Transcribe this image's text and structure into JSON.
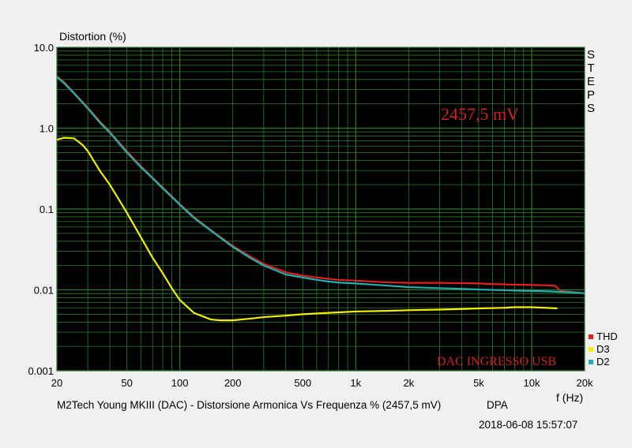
{
  "chart_data": {
    "type": "line",
    "ylabel": "Distortion (%)",
    "xlabel": "f (Hz)",
    "x_scale": "log",
    "y_scale": "log",
    "xlim": [
      20,
      20000
    ],
    "ylim": [
      0.001,
      10
    ],
    "x_ticks": [
      {
        "value": 20,
        "label": "20"
      },
      {
        "value": 50,
        "label": "50"
      },
      {
        "value": 100,
        "label": "100"
      },
      {
        "value": 200,
        "label": "200"
      },
      {
        "value": 500,
        "label": "500"
      },
      {
        "value": 1000,
        "label": "1k"
      },
      {
        "value": 2000,
        "label": "2k"
      },
      {
        "value": 5000,
        "label": "5k"
      },
      {
        "value": 10000,
        "label": "10k"
      },
      {
        "value": 20000,
        "label": "20k"
      }
    ],
    "y_ticks": [
      {
        "value": 10,
        "label": "10.0"
      },
      {
        "value": 1,
        "label": "1.0"
      },
      {
        "value": 0.1,
        "label": "0.1"
      },
      {
        "value": 0.01,
        "label": "0.01"
      },
      {
        "value": 0.001,
        "label": "0.001"
      }
    ],
    "grid": true,
    "background": "#000000",
    "grid_color": "#2e7a2e",
    "legend_position": "bottom-right",
    "annotations": {
      "level": "2457,5 mV",
      "source": "DAC INGRESSO USB",
      "steps": "STEPS"
    },
    "series": [
      {
        "name": "THD",
        "color": "#e02020",
        "x": [
          20,
          22,
          25,
          30,
          35,
          40,
          50,
          60,
          70,
          80,
          100,
          120,
          150,
          200,
          250,
          300,
          400,
          500,
          600,
          700,
          800,
          1000,
          1500,
          2000,
          3000,
          4000,
          5000,
          6000,
          7000,
          8000,
          10000,
          12000,
          13500,
          14000,
          14500,
          15000,
          16000,
          18000,
          20000
        ],
        "y": [
          4.4,
          3.7,
          2.75,
          1.8,
          1.22,
          0.9,
          0.52,
          0.34,
          0.245,
          0.185,
          0.115,
          0.08,
          0.055,
          0.035,
          0.026,
          0.021,
          0.0165,
          0.015,
          0.0142,
          0.0137,
          0.0133,
          0.013,
          0.0124,
          0.0122,
          0.0122,
          0.0121,
          0.012,
          0.0118,
          0.0117,
          0.0116,
          0.0115,
          0.0114,
          0.0113,
          0.0106,
          0.0098,
          0.0096,
          0.0095,
          0.0093,
          0.0091
        ]
      },
      {
        "name": "D3",
        "color": "#f0f000",
        "x": [
          20,
          22,
          25,
          28,
          30,
          35,
          40,
          50,
          60,
          70,
          80,
          90,
          100,
          120,
          150,
          170,
          200,
          250,
          300,
          400,
          500,
          700,
          1000,
          1500,
          2000,
          3000,
          4000,
          5000,
          7000,
          8000,
          10000,
          12000,
          14000
        ],
        "y": [
          0.72,
          0.76,
          0.75,
          0.62,
          0.52,
          0.3,
          0.2,
          0.09,
          0.045,
          0.025,
          0.016,
          0.0105,
          0.0075,
          0.0052,
          0.0043,
          0.0042,
          0.0042,
          0.0044,
          0.0046,
          0.0048,
          0.005,
          0.0052,
          0.0054,
          0.0055,
          0.0056,
          0.0057,
          0.0058,
          0.0059,
          0.006,
          0.0061,
          0.0061,
          0.006,
          0.0059
        ]
      },
      {
        "name": "D2",
        "color": "#20b0b0",
        "x": [
          20,
          22,
          25,
          30,
          35,
          40,
          50,
          60,
          70,
          80,
          100,
          120,
          150,
          200,
          250,
          300,
          400,
          500,
          600,
          700,
          800,
          1000,
          1500,
          2000,
          3000,
          4000,
          5000,
          7000,
          8000,
          10000,
          12000,
          15000,
          20000
        ],
        "y": [
          4.3,
          3.6,
          2.7,
          1.75,
          1.18,
          0.88,
          0.5,
          0.33,
          0.24,
          0.18,
          0.113,
          0.078,
          0.054,
          0.034,
          0.025,
          0.02,
          0.0155,
          0.0142,
          0.0133,
          0.0127,
          0.0123,
          0.012,
          0.0113,
          0.0108,
          0.0105,
          0.0103,
          0.0101,
          0.0099,
          0.0098,
          0.0097,
          0.0096,
          0.0094,
          0.0091
        ]
      }
    ]
  },
  "footer": {
    "caption": "M2Tech Young MKIII (DAC) - Distorsione Armonica Vs Frequenza % (2457,5 mV)",
    "brand": "DPA",
    "timestamp": "2018-06-08 15:57:07"
  }
}
